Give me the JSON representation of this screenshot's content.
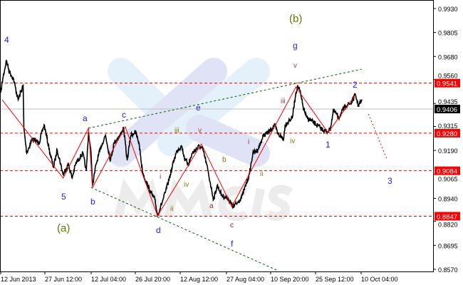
{
  "chart_data": {
    "type": "line",
    "title": "",
    "xlabel": "",
    "ylabel": "",
    "ylim": [
      0.857,
      0.993
    ],
    "grid": false,
    "y_ticks": [
      "0.9930",
      "0.9805",
      "0.9680",
      "0.9560",
      "0.9435",
      "0.9315",
      "0.9190",
      "0.9065",
      "0.8940",
      "0.8820",
      "0.8695",
      "0.8570"
    ],
    "x_ticks": [
      {
        "label": "12 Jun 2013",
        "date": "2013-06-12T00:00"
      },
      {
        "label": "27 Jun 12:00",
        "date": "2013-06-27T12:00"
      },
      {
        "label": "12 Jul 04:00",
        "date": "2013-07-12T04:00"
      },
      {
        "label": "26 Jul 20:00",
        "date": "2013-07-26T20:00"
      },
      {
        "label": "12 Aug 12:00",
        "date": "2013-08-12T12:00"
      },
      {
        "label": "27 Aug 04:00",
        "date": "2013-08-27T04:00"
      },
      {
        "label": "10 Sep 20:00",
        "date": "2013-09-10T20:00"
      },
      {
        "label": "25 Sep 12:00",
        "date": "2013-09-25T12:00"
      },
      {
        "label": "10 Oct 04:00",
        "date": "2013-10-10T04:00"
      }
    ],
    "price_series": [
      [
        "2013-06-12T00:00",
        0.9491
      ],
      [
        "2013-06-12T18:00",
        0.9566
      ],
      [
        "2013-06-14T00:00",
        0.9659
      ],
      [
        "2013-06-15T00:00",
        0.9603
      ],
      [
        "2013-06-16T10:00",
        0.9566
      ],
      [
        "2013-06-18T03:00",
        0.9454
      ],
      [
        "2013-06-19T21:00",
        0.9529
      ],
      [
        "2013-06-20T03:00",
        0.9306
      ],
      [
        "2013-06-21T03:00",
        0.9176
      ],
      [
        "2013-06-23T01:00",
        0.925
      ],
      [
        "2013-06-25T12:00",
        0.9231
      ],
      [
        "2013-06-27T06:00",
        0.9324
      ],
      [
        "2013-06-29T03:00",
        0.9176
      ],
      [
        "2013-06-30T06:00",
        0.9101
      ],
      [
        "2013-07-01T10:00",
        0.9194
      ],
      [
        "2013-07-03T07:00",
        0.9064
      ],
      [
        "2013-07-04T23:00",
        0.912
      ],
      [
        "2013-07-06T03:00",
        0.9046
      ],
      [
        "2013-07-07T06:00",
        0.912
      ],
      [
        "2013-07-09T12:00",
        0.9176
      ],
      [
        "2013-07-10T15:00",
        0.9083
      ],
      [
        "2013-07-11T08:00",
        0.9287
      ],
      [
        "2013-07-12T03:00",
        0.9176
      ],
      [
        "2013-07-12T15:00",
        0.9008
      ],
      [
        "2013-07-13T20:00",
        0.912
      ],
      [
        "2013-07-15T12:00",
        0.9213
      ],
      [
        "2013-07-16T22:00",
        0.9269
      ],
      [
        "2013-07-18T14:00",
        0.9138
      ],
      [
        "2013-07-19T20:00",
        0.9231
      ],
      [
        "2013-07-21T18:00",
        0.9269
      ],
      [
        "2013-07-22T22:00",
        0.9306
      ],
      [
        "2013-07-24T03:00",
        0.9138
      ],
      [
        "2013-07-25T08:00",
        0.9269
      ],
      [
        "2013-07-26T20:00",
        0.9287
      ],
      [
        "2013-07-28T04:00",
        0.9231
      ],
      [
        "2013-07-29T11:00",
        0.9083
      ],
      [
        "2013-07-30T19:00",
        0.9027
      ],
      [
        "2013-08-01T14:00",
        0.8971
      ],
      [
        "2013-08-03T02:00",
        0.8934
      ],
      [
        "2013-08-04T02:00",
        0.8852
      ],
      [
        "2013-08-05T16:00",
        0.8915
      ],
      [
        "2013-08-07T00:00",
        0.8971
      ],
      [
        "2013-08-08T20:00",
        0.9064
      ],
      [
        "2013-08-10T03:00",
        0.9138
      ],
      [
        "2013-08-11T11:00",
        0.9194
      ],
      [
        "2013-08-12T23:00",
        0.9213
      ],
      [
        "2013-08-14T02:00",
        0.9138
      ],
      [
        "2013-08-15T05:00",
        0.912
      ],
      [
        "2013-08-16T08:00",
        0.9176
      ],
      [
        "2013-08-18T14:00",
        0.9213
      ],
      [
        "2013-08-19T17:00",
        0.9194
      ],
      [
        "2013-08-20T20:00",
        0.912
      ],
      [
        "2013-08-21T23:00",
        0.9027
      ],
      [
        "2013-08-23T02:00",
        0.8934
      ],
      [
        "2013-08-24T05:00",
        0.9008
      ],
      [
        "2013-08-25T19:00",
        0.8953
      ],
      [
        "2013-08-27T15:00",
        0.8941
      ],
      [
        "2013-08-29T07:00",
        0.8897
      ],
      [
        "2013-08-30T17:00",
        0.8915
      ],
      [
        "2013-09-01T09:00",
        0.8953
      ],
      [
        "2013-09-03T18:00",
        0.9064
      ],
      [
        "2013-09-04T22:00",
        0.9176
      ],
      [
        "2013-09-06T14:00",
        0.9194
      ],
      [
        "2013-09-08T11:00",
        0.9269
      ],
      [
        "2013-09-10T09:00",
        0.9287
      ],
      [
        "2013-09-12T01:00",
        0.9324
      ],
      [
        "2013-09-13T05:00",
        0.9276
      ],
      [
        "2013-09-15T02:00",
        0.925
      ],
      [
        "2013-09-15T13:00",
        0.9324
      ],
      [
        "2013-09-16T17:00",
        0.9343
      ],
      [
        "2013-09-17T22:00",
        0.9361
      ],
      [
        "2013-09-19T02:00",
        0.9491
      ],
      [
        "2013-09-19T13:00",
        0.9521
      ],
      [
        "2013-09-20T06:00",
        0.951
      ],
      [
        "2013-09-21T10:00",
        0.9417
      ],
      [
        "2013-09-22T14:00",
        0.9361
      ],
      [
        "2013-09-24T22:00",
        0.9335
      ],
      [
        "2013-09-27T03:00",
        0.9306
      ],
      [
        "2013-09-29T00:00",
        0.9287
      ],
      [
        "2013-09-30T04:00",
        0.9298
      ],
      [
        "2013-10-01T07:00",
        0.9399
      ],
      [
        "2013-10-02T23:00",
        0.9361
      ],
      [
        "2013-10-05T06:00",
        0.9425
      ],
      [
        "2013-10-06T22:00",
        0.9436
      ],
      [
        "2013-10-08T08:00",
        0.948
      ],
      [
        "2013-10-09T06:00",
        0.9425
      ],
      [
        "2013-10-10T09:00",
        0.9447
      ]
    ],
    "wave_zigzag": [
      [
        "2013-06-12T12:00",
        0.9454
      ],
      [
        "2013-07-03T07:00",
        0.9046
      ],
      [
        "2013-07-11T08:00",
        0.9306
      ],
      [
        "2013-07-12T15:00",
        0.8997
      ],
      [
        "2013-07-23T12:00",
        0.9313
      ],
      [
        "2013-08-04T02:00",
        0.8849
      ],
      [
        "2013-08-19T05:00",
        0.9224
      ],
      [
        "2013-08-28T22:00",
        0.8897
      ],
      [
        "2013-09-19T02:00",
        0.9521
      ],
      [
        "2013-09-29T12:00",
        0.9283
      ],
      [
        "2013-10-08T08:00",
        0.948
      ]
    ],
    "projection": [
      [
        "2013-10-12T13:00",
        0.938
      ],
      [
        "2013-10-18T12:00",
        0.9142
      ]
    ],
    "channel_upper": [
      [
        "2013-07-11T08:00",
        0.9306
      ],
      [
        "2013-10-10T09:00",
        0.9614
      ]
    ],
    "channel_lower": [
      [
        "2013-07-12T03:00",
        0.8997
      ],
      [
        "2013-09-13T05:00",
        0.8563
      ]
    ],
    "levels": [
      {
        "value": "0.9541",
        "color": "#ff0000"
      },
      {
        "value": "0.9280",
        "color": "#ff0000"
      },
      {
        "value": "0.9084",
        "color": "#ff0000"
      },
      {
        "value": "0.8847",
        "color": "#ff0000"
      }
    ],
    "current_price": {
      "value": "0.9406",
      "color": "#000000"
    },
    "colors": {
      "price": "#000000",
      "waves": "#ff0000",
      "channel": "#006400",
      "wave_label": "#2020ff",
      "watermark": "#dfe6f5"
    },
    "watermark_text": "MMCIS",
    "wave_labels": {
      "w4": "4",
      "w5": "5",
      "wa": "a",
      "wb": "b",
      "wc": "c",
      "wd": "d",
      "we": "e",
      "wf": "f",
      "wg": "g",
      "w1": "1",
      "w2": "2",
      "w3": "3",
      "big_a": "(a)",
      "big_b": "(b)",
      "s_i1": "i",
      "s_ii1": "ii",
      "s_iii1": "iii",
      "s_iv1": "iv",
      "s_v1": "v",
      "s_a": "a",
      "s_b": "b",
      "s_c": "c",
      "s_i2": "i",
      "s_ii2": "ii",
      "s_iii2": "iii",
      "s_iv2": "iv",
      "s_v2": "v"
    }
  }
}
